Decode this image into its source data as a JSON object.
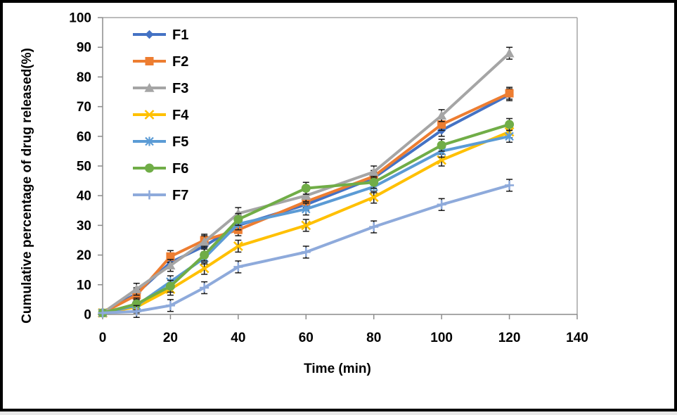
{
  "figure": {
    "background": "#ffffff",
    "border_color": "#000000"
  },
  "chart_data": {
    "type": "line",
    "title": "",
    "xlabel": "Time (min)",
    "ylabel": "Cumulative percentage of drug released(%)",
    "x": [
      0,
      10,
      20,
      30,
      40,
      60,
      80,
      100,
      120
    ],
    "xlim": [
      0,
      140
    ],
    "ylim": [
      0,
      100
    ],
    "x_ticks": [
      0,
      20,
      40,
      60,
      80,
      100,
      120,
      140
    ],
    "y_ticks": [
      0,
      10,
      20,
      30,
      40,
      50,
      60,
      70,
      80,
      90,
      100
    ],
    "grid": false,
    "legend_position": "upper-left-inside",
    "error_bar": 2,
    "axis_color": "#8c8c8c",
    "plot_border_color": "#a6a6a6",
    "error_bar_color": "#1a1a1a",
    "series": [
      {
        "name": "F1",
        "color": "#4472C4",
        "marker": "diamond",
        "values": [
          0.5,
          7,
          17.5,
          23,
          30,
          37,
          46,
          62,
          74
        ]
      },
      {
        "name": "F2",
        "color": "#ED7D31",
        "marker": "square",
        "values": [
          0.5,
          6.5,
          19.5,
          25,
          28.5,
          38,
          46.5,
          64,
          74.5
        ]
      },
      {
        "name": "F3",
        "color": "#A5A5A5",
        "marker": "triangle",
        "values": [
          0.5,
          8.5,
          16.5,
          24.5,
          34,
          40,
          48,
          67,
          88
        ]
      },
      {
        "name": "F4",
        "color": "#FFC000",
        "marker": "x",
        "values": [
          0.5,
          2.5,
          8.5,
          15.5,
          23,
          30,
          39.5,
          52,
          61.5
        ]
      },
      {
        "name": "F5",
        "color": "#5B9BD5",
        "marker": "asterisk",
        "values": [
          0.5,
          3,
          11,
          19,
          30.5,
          35.5,
          43,
          55,
          60
        ]
      },
      {
        "name": "F6",
        "color": "#70AD47",
        "marker": "circle",
        "values": [
          0.5,
          3.5,
          9.5,
          20,
          32,
          42.5,
          44.5,
          57,
          64
        ]
      },
      {
        "name": "F7",
        "color": "#8EAADB",
        "marker": "plus",
        "values": [
          0.5,
          1,
          3,
          9,
          16,
          21,
          29.5,
          37,
          43.5
        ]
      }
    ]
  }
}
